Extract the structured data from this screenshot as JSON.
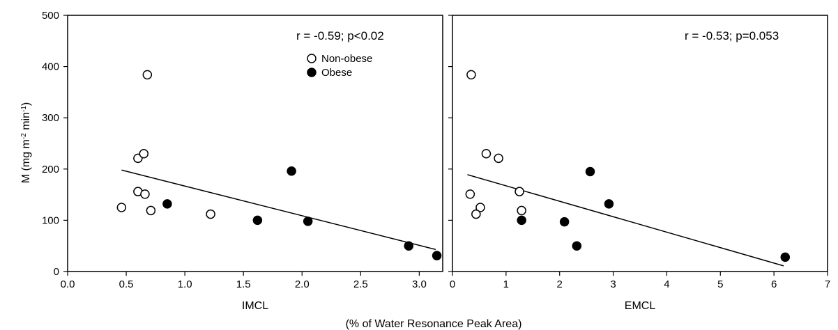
{
  "figure": {
    "shared_xlabel": "(% of Water Resonance Peak Area)",
    "ylabel_main": "M (mg m",
    "ylabel_exp1": "-2",
    "ylabel_mid": " min",
    "ylabel_exp2": "-1",
    "ylabel_end": ")"
  },
  "legend": {
    "items": [
      {
        "label": "Non-obese",
        "marker": "open-circle"
      },
      {
        "label": "Obese",
        "marker": "filled-circle"
      }
    ]
  },
  "chart_data": [
    {
      "type": "scatter",
      "xlabel": "IMCL",
      "ylabel": "M (mg m-2 min-1)",
      "annotation": "r = -0.59; p<0.02",
      "xlim": [
        0,
        3.2
      ],
      "ylim": [
        0,
        500
      ],
      "xticks": [
        "0.0",
        "0.5",
        "1.0",
        "1.5",
        "2.0",
        "2.5",
        "3.0"
      ],
      "xtick_values": [
        0,
        0.5,
        1.0,
        1.5,
        2.0,
        2.5,
        3.0
      ],
      "yticks": [
        "0",
        "100",
        "200",
        "300",
        "400",
        "500"
      ],
      "ytick_values": [
        0,
        100,
        200,
        300,
        400,
        500
      ],
      "grid": false,
      "legend_position": "top-right",
      "series": [
        {
          "name": "Non-obese",
          "marker": "open-circle",
          "points": [
            [
              0.46,
              125
            ],
            [
              0.6,
              156
            ],
            [
              0.66,
              151
            ],
            [
              0.6,
              221
            ],
            [
              0.65,
              230
            ],
            [
              0.68,
              384
            ],
            [
              0.71,
              119
            ],
            [
              1.22,
              112
            ]
          ]
        },
        {
          "name": "Obese",
          "marker": "filled-circle",
          "points": [
            [
              0.85,
              132
            ],
            [
              1.62,
              100
            ],
            [
              1.91,
              196
            ],
            [
              2.05,
              98
            ],
            [
              2.91,
              50
            ],
            [
              3.15,
              31
            ]
          ]
        }
      ],
      "fit_line": {
        "x": [
          0.46,
          3.14
        ],
        "y": [
          198,
          43
        ]
      }
    },
    {
      "type": "scatter",
      "xlabel": "EMCL",
      "ylabel": "",
      "annotation": "r = -0.53; p=0.053",
      "xlim": [
        0,
        7
      ],
      "ylim": [
        0,
        500
      ],
      "xticks": [
        "0",
        "1",
        "2",
        "3",
        "4",
        "5",
        "6",
        "7"
      ],
      "xtick_values": [
        0,
        1,
        2,
        3,
        4,
        5,
        6,
        7
      ],
      "yticks": [],
      "ytick_values": [
        0,
        100,
        200,
        300,
        400,
        500
      ],
      "grid": false,
      "legend_position": "none",
      "series": [
        {
          "name": "Non-obese",
          "marker": "open-circle",
          "points": [
            [
              0.35,
              384
            ],
            [
              0.63,
              230
            ],
            [
              0.86,
              221
            ],
            [
              0.33,
              151
            ],
            [
              0.52,
              125
            ],
            [
              0.44,
              112
            ],
            [
              1.25,
              156
            ],
            [
              1.29,
              119
            ]
          ]
        },
        {
          "name": "Obese",
          "marker": "filled-circle",
          "points": [
            [
              1.29,
              100
            ],
            [
              2.09,
              97
            ],
            [
              2.32,
              50
            ],
            [
              2.57,
              195
            ],
            [
              2.92,
              132
            ],
            [
              6.21,
              28
            ]
          ]
        }
      ],
      "fit_line": {
        "x": [
          0.28,
          6.18
        ],
        "y": [
          189,
          11
        ]
      }
    }
  ]
}
